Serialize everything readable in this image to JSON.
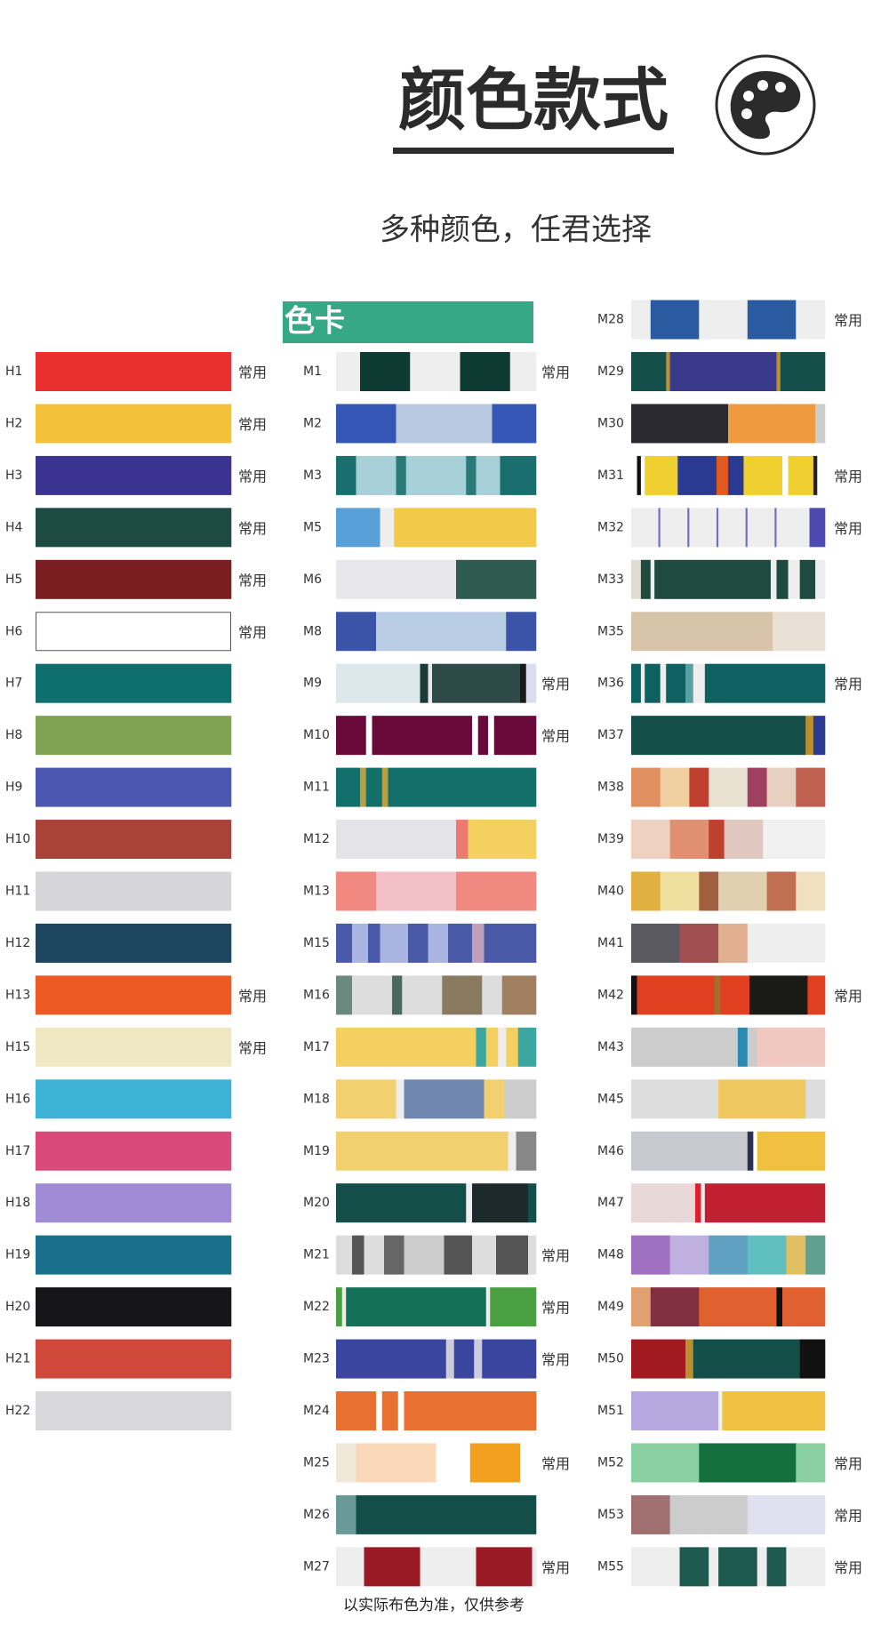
{
  "header": {
    "title": "颜色款式",
    "subtitle": "多种颜色，任君选择"
  },
  "card_label": "色卡",
  "columns": [
    {
      "items": [
        {
          "code": "H1",
          "tag": "常用"
        },
        {
          "code": "H2",
          "tag": "常用"
        },
        {
          "code": "H3",
          "tag": "常用"
        },
        {
          "code": "H4",
          "tag": "常用"
        },
        {
          "code": "H5",
          "tag": "常用"
        },
        {
          "code": "H6",
          "tag": "常用"
        },
        {
          "code": "H7"
        },
        {
          "code": "H8"
        },
        {
          "code": "H9"
        },
        {
          "code": "H10"
        },
        {
          "code": "H11"
        },
        {
          "code": "H12"
        },
        {
          "code": "H13",
          "tag": "常用"
        },
        {
          "code": "H15",
          "tag": "常用"
        },
        {
          "code": "H16"
        },
        {
          "code": "H17"
        },
        {
          "code": "H18"
        },
        {
          "code": "H19"
        },
        {
          "code": "H20"
        },
        {
          "code": "H21"
        },
        {
          "code": "H22"
        }
      ]
    },
    {
      "items": [
        {
          "code": "M1",
          "tag": "常用"
        },
        {
          "code": "M2"
        },
        {
          "code": "M3"
        },
        {
          "code": "M5"
        },
        {
          "code": "M6"
        },
        {
          "code": "M8"
        },
        {
          "code": "M9",
          "tag": "常用"
        },
        {
          "code": "M10",
          "tag": "常用"
        },
        {
          "code": "M11"
        },
        {
          "code": "M12"
        },
        {
          "code": "M13"
        },
        {
          "code": "M15"
        },
        {
          "code": "M16"
        },
        {
          "code": "M17"
        },
        {
          "code": "M18"
        },
        {
          "code": "M19"
        },
        {
          "code": "M20"
        },
        {
          "code": "M21",
          "tag": "常用"
        },
        {
          "code": "M22",
          "tag": "常用"
        },
        {
          "code": "M23",
          "tag": "常用"
        },
        {
          "code": "M24"
        },
        {
          "code": "M25",
          "tag": "常用"
        },
        {
          "code": "M26"
        },
        {
          "code": "M27",
          "tag": "常用"
        }
      ]
    },
    {
      "items": [
        {
          "code": "M28",
          "tag": "常用"
        },
        {
          "code": "M29"
        },
        {
          "code": "M30"
        },
        {
          "code": "M31",
          "tag": "常用"
        },
        {
          "code": "M32",
          "tag": "常用"
        },
        {
          "code": "M33"
        },
        {
          "code": "M35"
        },
        {
          "code": "M36",
          "tag": "常用"
        },
        {
          "code": "M37"
        },
        {
          "code": "M38"
        },
        {
          "code": "M39"
        },
        {
          "code": "M40"
        },
        {
          "code": "M41"
        },
        {
          "code": "M42",
          "tag": "常用"
        },
        {
          "code": "M43"
        },
        {
          "code": "M45"
        },
        {
          "code": "M46"
        },
        {
          "code": "M47"
        },
        {
          "code": "M48"
        },
        {
          "code": "M49"
        },
        {
          "code": "M50"
        },
        {
          "code": "M51"
        },
        {
          "code": "M52",
          "tag": "常用"
        },
        {
          "code": "M53",
          "tag": "常用"
        },
        {
          "code": "M55",
          "tag": "常用"
        }
      ]
    }
  ],
  "footer": "以实际布色为准，仅供参考"
}
